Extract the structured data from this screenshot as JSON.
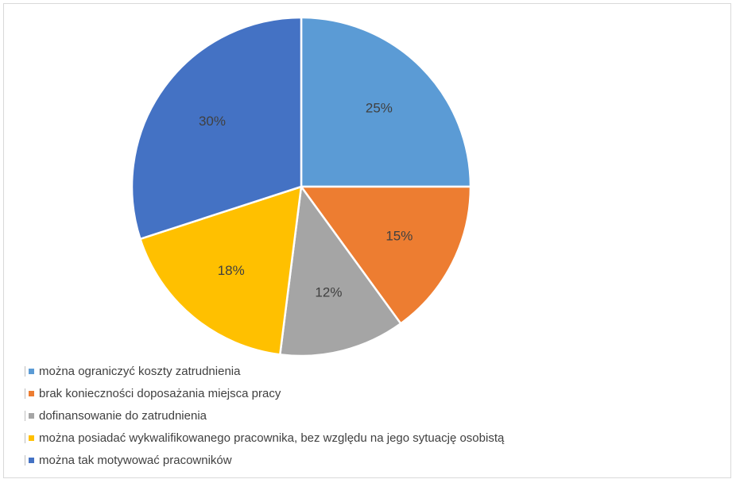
{
  "chart_data": {
    "type": "pie",
    "title": "",
    "categories": [
      "można ograniczyć koszty zatrudnienia",
      "brak konieczności doposażania miejsca pracy",
      "dofinansowanie do zatrudnienia",
      "można posiadać wykwalifikowanego pracownika, bez względu na jego sytuację osobistą",
      "można tak motywować pracowników"
    ],
    "values": [
      25,
      15,
      12,
      18,
      30
    ],
    "data_labels": [
      "25%",
      "15%",
      "12%",
      "18%",
      "30%"
    ],
    "colors": [
      "#5B9BD5",
      "#ED7D31",
      "#A5A5A5",
      "#FFC000",
      "#4472C4"
    ],
    "legend_position": "bottom-left"
  }
}
